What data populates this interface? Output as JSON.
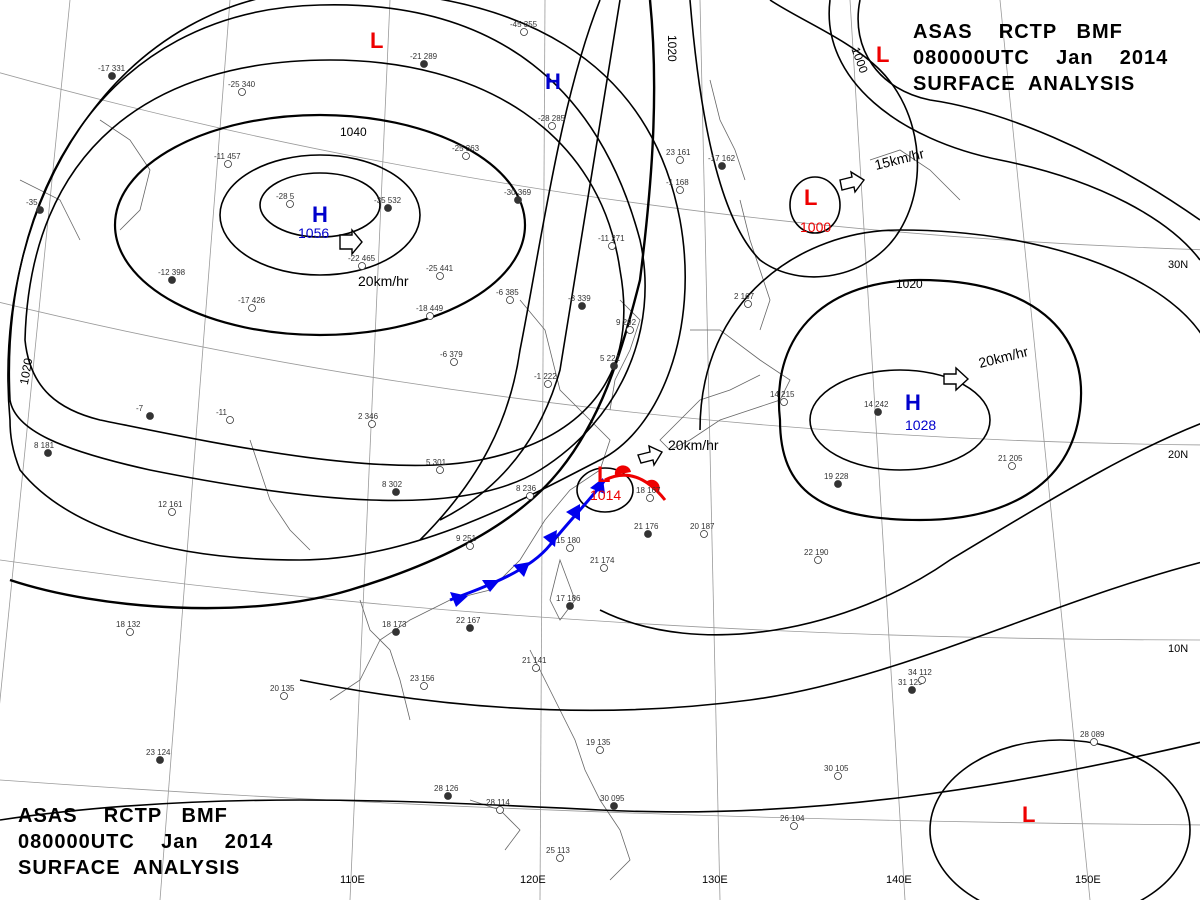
{
  "header": {
    "line1": "ASAS    RCTP   BMF",
    "line2": "080000UTC    Jan    2014",
    "line3": "SURFACE  ANALYSIS"
  },
  "footer": {
    "line1": "ASAS    RCTP   BMF",
    "line2": "080000UTC    Jan    2014",
    "line3": "SURFACE  ANALYSIS"
  },
  "isobar_labels": [
    "1040",
    "1020",
    "1020",
    "1020",
    "1000"
  ],
  "pressure_centers": [
    {
      "type": "H",
      "value": "1056",
      "color": "#0000cc"
    },
    {
      "type": "H",
      "value": "",
      "color": "#0000cc"
    },
    {
      "type": "H",
      "value": "1028",
      "color": "#0000cc"
    },
    {
      "type": "L",
      "value": "1000",
      "color": "#ee0000"
    },
    {
      "type": "L",
      "value": "1014",
      "color": "#ee0000"
    },
    {
      "type": "L",
      "value": "",
      "color": "#ee0000"
    },
    {
      "type": "L",
      "value": "",
      "color": "#ee0000"
    },
    {
      "type": "L",
      "value": "",
      "color": "#ee0000"
    }
  ],
  "motion_labels": [
    "20km/hr",
    "15km/hr",
    "20km/hr",
    "20km/hr"
  ],
  "longitude_labels": [
    "110E",
    "120E",
    "130E",
    "140E",
    "150E"
  ],
  "latitude_labels": [
    "30N",
    "20N",
    "10N"
  ],
  "front_colors": {
    "cold": "#0000ee",
    "warm": "#ee0000"
  },
  "station_obs": [
    "-17 331",
    "-25 340",
    "-45 355",
    "-21 289",
    "-28 285",
    "-25 363",
    "-30 369",
    "-11 457",
    "-28 5",
    "-35 532",
    "-22 465",
    "-25 441",
    "-12 398",
    "-17 426",
    "-11 271",
    "-3 339",
    "-6 385",
    "9 292",
    "5 221",
    "-1 222",
    "-18 449",
    "-35",
    "-6 379",
    "-11",
    "-7",
    "2 346",
    "5 301",
    "8 302",
    "8 236",
    "9 251",
    "22 167",
    "18 132",
    "12 161",
    "8 181",
    "20 135",
    "23 156",
    "18 173",
    "15 180",
    "21 174",
    "21 176",
    "20 187",
    "18 167",
    "17 186",
    "21 141",
    "19 135",
    "28 126",
    "28 114",
    "25 113",
    "30 095",
    "26 104",
    "30 105",
    "31 129",
    "34 112",
    "28 089",
    "19 228",
    "22 190",
    "21 205",
    "14 242",
    "23 161",
    "-1 168",
    "-17 162",
    "14 215",
    "2 167",
    "23 124"
  ]
}
